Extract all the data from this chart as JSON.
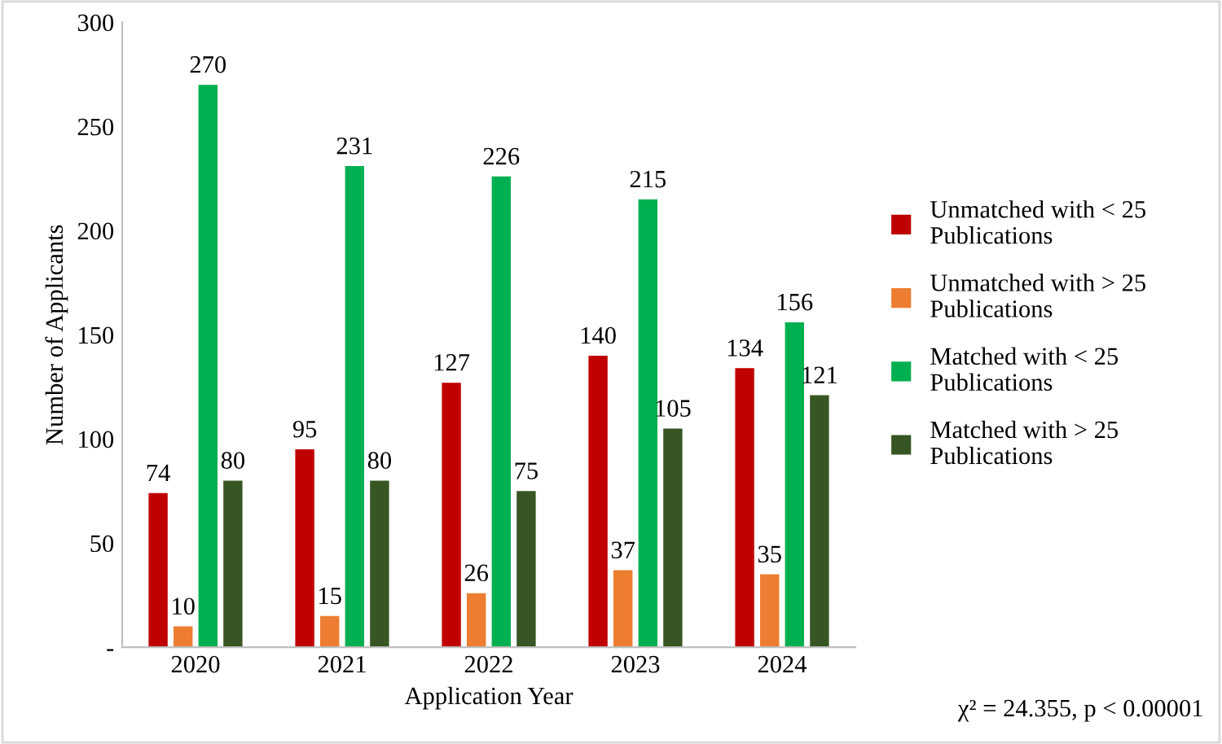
{
  "chart_data": {
    "type": "bar",
    "xlabel": "Application Year",
    "ylabel": "Number of Applicants",
    "categories": [
      "2020",
      "2021",
      "2022",
      "2023",
      "2024"
    ],
    "series": [
      {
        "name": "Unmatched with < 25 Publications",
        "color": "#c00000",
        "values": [
          74,
          95,
          127,
          140,
          134
        ]
      },
      {
        "name": "Unmatched with > 25 Publications",
        "color": "#ed7d31",
        "values": [
          10,
          15,
          26,
          37,
          35
        ]
      },
      {
        "name": "Matched with < 25 Publications",
        "color": "#00b050",
        "values": [
          270,
          231,
          226,
          215,
          156
        ]
      },
      {
        "name": "Matched with > 25 Publications",
        "color": "#375623",
        "values": [
          80,
          80,
          75,
          105,
          121
        ]
      }
    ],
    "ylim": [
      0,
      300
    ],
    "yticks": [
      {
        "value": 0,
        "label": "-"
      },
      50,
      100,
      150,
      200,
      250,
      300
    ],
    "data_labels": true,
    "grid": false,
    "legend": "right",
    "annotations": [
      "χ² = 24.355, p < 0.00001"
    ]
  }
}
